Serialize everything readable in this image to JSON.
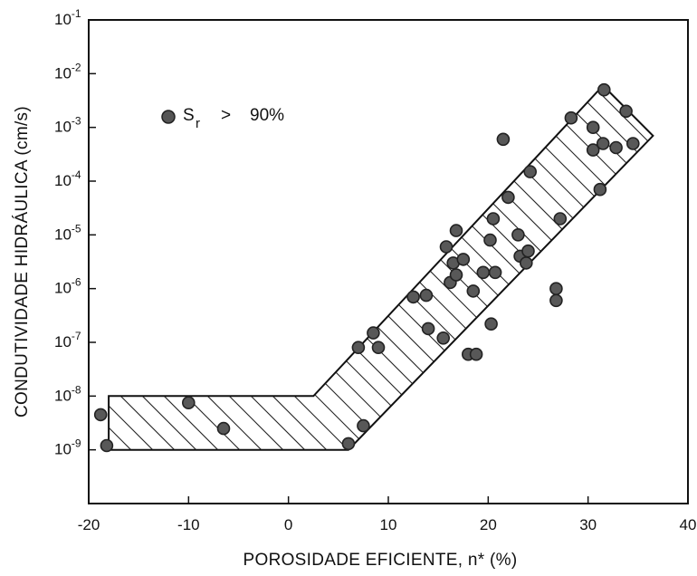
{
  "chart_data": {
    "type": "scatter",
    "xlabel": "POROSIDADE EFICIENTE, n* (%)",
    "ylabel": "CONDUTIVIDADE HIDRÁULICA (cm/s)",
    "x_ticks": [
      "-20",
      "-10",
      "0",
      "10",
      "20",
      "30",
      "40"
    ],
    "xlim": [
      -20,
      40
    ],
    "y_scale": "log",
    "ylim": [
      1e-10,
      0.1
    ],
    "y_ticks": [
      {
        "base": "10",
        "exp": "-1",
        "value": 0.1
      },
      {
        "base": "10",
        "exp": "-2",
        "value": 0.01
      },
      {
        "base": "10",
        "exp": "-3",
        "value": 0.001
      },
      {
        "base": "10",
        "exp": "-4",
        "value": 0.0001
      },
      {
        "base": "10",
        "exp": "-5",
        "value": 1e-05
      },
      {
        "base": "10",
        "exp": "-6",
        "value": 1e-06
      },
      {
        "base": "10",
        "exp": "-7",
        "value": 1e-07
      },
      {
        "base": "10",
        "exp": "-8",
        "value": 1e-08
      },
      {
        "base": "10",
        "exp": "-9",
        "value": 1e-09
      }
    ],
    "legend": {
      "symbol": "S",
      "subscript": "r",
      "operator": ">",
      "value": "90%",
      "placement": "top-left"
    },
    "band": {
      "upper": [
        [
          -18,
          1e-08
        ],
        [
          2.5,
          1e-08
        ],
        [
          31.5,
          0.006
        ]
      ],
      "lower": [
        [
          36.5,
          0.0007
        ],
        [
          6,
          1e-09
        ],
        [
          -18,
          1e-09
        ]
      ]
    },
    "points": [
      {
        "x": -18.8,
        "y": 4.5e-09
      },
      {
        "x": -18.2,
        "y": 1.2e-09
      },
      {
        "x": -10,
        "y": 7.5e-09
      },
      {
        "x": -6.5,
        "y": 2.5e-09
      },
      {
        "x": 6,
        "y": 1.3e-09
      },
      {
        "x": 7.5,
        "y": 2.8e-09
      },
      {
        "x": 7,
        "y": 8e-08
      },
      {
        "x": 8.5,
        "y": 1.5e-07
      },
      {
        "x": 9,
        "y": 8e-08
      },
      {
        "x": 12.5,
        "y": 7e-07
      },
      {
        "x": 13.8,
        "y": 7.5e-07
      },
      {
        "x": 14,
        "y": 1.8e-07
      },
      {
        "x": 15.5,
        "y": 1.2e-07
      },
      {
        "x": 15.8,
        "y": 6e-06
      },
      {
        "x": 16.2,
        "y": 1.3e-06
      },
      {
        "x": 16.5,
        "y": 3e-06
      },
      {
        "x": 16.8,
        "y": 1.8e-06
      },
      {
        "x": 16.8,
        "y": 1.2e-05
      },
      {
        "x": 17.5,
        "y": 3.5e-06
      },
      {
        "x": 18,
        "y": 6e-08
      },
      {
        "x": 18.5,
        "y": 9e-07
      },
      {
        "x": 18.8,
        "y": 6e-08
      },
      {
        "x": 19.5,
        "y": 2e-06
      },
      {
        "x": 20.3,
        "y": 2.2e-07
      },
      {
        "x": 20.2,
        "y": 8e-06
      },
      {
        "x": 20.5,
        "y": 2e-05
      },
      {
        "x": 20.7,
        "y": 2e-06
      },
      {
        "x": 21.5,
        "y": 0.0006
      },
      {
        "x": 22,
        "y": 5e-05
      },
      {
        "x": 23,
        "y": 1e-05
      },
      {
        "x": 23.2,
        "y": 4e-06
      },
      {
        "x": 23.8,
        "y": 3e-06
      },
      {
        "x": 24,
        "y": 5e-06
      },
      {
        "x": 24.2,
        "y": 0.00015
      },
      {
        "x": 26.8,
        "y": 1e-06
      },
      {
        "x": 26.8,
        "y": 6e-07
      },
      {
        "x": 27.2,
        "y": 2e-05
      },
      {
        "x": 28.3,
        "y": 0.0015
      },
      {
        "x": 30.5,
        "y": 0.001
      },
      {
        "x": 30.5,
        "y": 0.00038
      },
      {
        "x": 31.2,
        "y": 7e-05
      },
      {
        "x": 31.5,
        "y": 0.0005
      },
      {
        "x": 31.6,
        "y": 0.005
      },
      {
        "x": 32.8,
        "y": 0.00042
      },
      {
        "x": 33.8,
        "y": 0.002
      },
      {
        "x": 34.5,
        "y": 0.0005
      }
    ]
  }
}
